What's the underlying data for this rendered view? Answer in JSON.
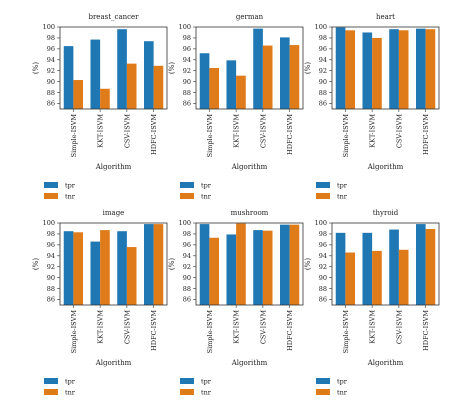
{
  "colors": {
    "tpr": "#1f77b4",
    "tnr": "#e07b1a"
  },
  "chart_data": [
    {
      "type": "bar",
      "title": "breast_cancer",
      "categories": [
        "Simple-ISVM",
        "KKT-ISVM",
        "CSV-ISVM",
        "HDFC-ISVM"
      ],
      "series": [
        {
          "name": "tpr",
          "values": [
            96.5,
            97.7,
            99.6,
            97.4
          ]
        },
        {
          "name": "tnr",
          "values": [
            90.3,
            88.7,
            93.3,
            92.9
          ]
        }
      ],
      "xlabel": "Algorithm",
      "ylabel": "(%)",
      "ylim": [
        85,
        100
      ],
      "yticks": [
        86,
        88,
        90,
        92,
        94,
        96,
        98,
        100
      ],
      "legend": "below"
    },
    {
      "type": "bar",
      "title": "german",
      "categories": [
        "Simple-ISVM",
        "KKT-ISVM",
        "CSV-ISVM",
        "HDFC-ISVM"
      ],
      "series": [
        {
          "name": "tpr",
          "values": [
            95.2,
            93.9,
            99.7,
            98.1
          ]
        },
        {
          "name": "tnr",
          "values": [
            92.5,
            91.1,
            96.6,
            96.7
          ]
        }
      ],
      "xlabel": "Algorithm",
      "ylabel": "(%)",
      "ylim": [
        85,
        100
      ],
      "yticks": [
        86,
        88,
        90,
        92,
        94,
        96,
        98,
        100
      ],
      "legend": "below"
    },
    {
      "type": "bar",
      "title": "heart",
      "categories": [
        "Simple-ISVM",
        "KKT-ISVM",
        "CSV-ISVM",
        "HDFC-ISVM"
      ],
      "series": [
        {
          "name": "tpr",
          "values": [
            99.9,
            99.0,
            99.6,
            99.7
          ]
        },
        {
          "name": "tnr",
          "values": [
            99.4,
            98.0,
            99.4,
            99.6
          ]
        }
      ],
      "xlabel": "Algorithm",
      "ylabel": "(%)",
      "ylim": [
        85,
        100
      ],
      "yticks": [
        86,
        88,
        90,
        92,
        94,
        96,
        98,
        100
      ],
      "legend": "below"
    },
    {
      "type": "bar",
      "title": "image",
      "categories": [
        "Simple-ISVM",
        "KKT-ISVM",
        "CSV-ISVM",
        "HDFC-ISVM"
      ],
      "series": [
        {
          "name": "tpr",
          "values": [
            98.5,
            96.6,
            98.5,
            99.8
          ]
        },
        {
          "name": "tnr",
          "values": [
            98.3,
            98.7,
            95.6,
            99.8
          ]
        }
      ],
      "xlabel": "Algorithm",
      "ylabel": "(%)",
      "ylim": [
        85,
        100
      ],
      "yticks": [
        86,
        88,
        90,
        92,
        94,
        96,
        98,
        100
      ],
      "legend": "below"
    },
    {
      "type": "bar",
      "title": "mushroom",
      "categories": [
        "Simple-ISVM",
        "KKT-ISVM",
        "CSV-ISVM",
        "HDFC-ISVM"
      ],
      "series": [
        {
          "name": "tpr",
          "values": [
            99.8,
            97.9,
            98.7,
            99.7
          ]
        },
        {
          "name": "tnr",
          "values": [
            97.3,
            99.9,
            98.6,
            99.7
          ]
        }
      ],
      "xlabel": "Algorithm",
      "ylabel": "(%)",
      "ylim": [
        85,
        100
      ],
      "yticks": [
        86,
        88,
        90,
        92,
        94,
        96,
        98,
        100
      ],
      "legend": "below"
    },
    {
      "type": "bar",
      "title": "thyroid",
      "categories": [
        "Simple-ISVM",
        "KKT-ISVM",
        "CSV-ISVM",
        "HDFC-ISVM"
      ],
      "series": [
        {
          "name": "tpr",
          "values": [
            98.2,
            98.2,
            98.8,
            99.8
          ]
        },
        {
          "name": "tnr",
          "values": [
            94.6,
            94.9,
            95.1,
            98.9
          ]
        }
      ],
      "xlabel": "Algorithm",
      "ylabel": "(%)",
      "ylim": [
        85,
        100
      ],
      "yticks": [
        86,
        88,
        90,
        92,
        94,
        96,
        98,
        100
      ],
      "legend": "below"
    }
  ]
}
